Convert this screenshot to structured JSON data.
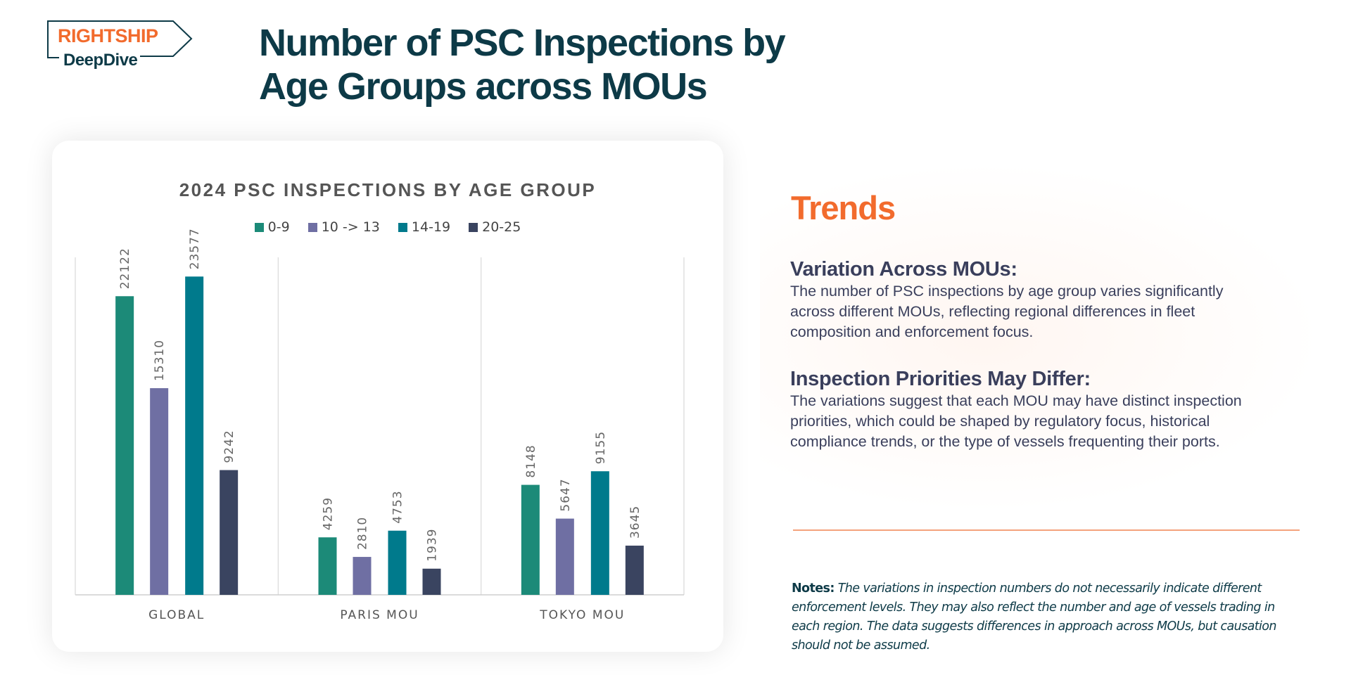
{
  "logo": {
    "brand": "RIGHTSHIP",
    "product": "DeepDive"
  },
  "header": {
    "title": "Number of PSC Inspections by Age Groups across MOUs"
  },
  "colors": {
    "accent": "#f26b2d",
    "title": "#0d3a47",
    "series": [
      "#1c8a78",
      "#6f6fa3",
      "#007a8c",
      "#3a4460"
    ]
  },
  "chart_data": {
    "type": "bar",
    "title": "2024 PSC INSPECTIONS BY AGE GROUP",
    "categories": [
      "GLOBAL",
      "PARIS MOU",
      "TOKYO MOU"
    ],
    "series": [
      {
        "name": "0-9",
        "values": [
          22122,
          4259,
          8148
        ]
      },
      {
        "name": "10 -> 13",
        "values": [
          15310,
          2810,
          5647
        ]
      },
      {
        "name": "14-19",
        "values": [
          23577,
          4753,
          9155
        ]
      },
      {
        "name": "20-25",
        "values": [
          9242,
          1939,
          3645
        ]
      }
    ],
    "xlabel": "",
    "ylabel": "",
    "ylim": [
      0,
      25000
    ],
    "legend": "top",
    "grid": false,
    "data_labels": true
  },
  "trends": {
    "heading": "Trends",
    "sections": [
      {
        "title": "Variation Across MOUs:",
        "body": "The number of PSC inspections by age group varies significantly across different MOUs, reflecting regional differences in fleet composition and enforcement focus."
      },
      {
        "title": "Inspection Priorities May Differ:",
        "body": "The variations suggest that each MOU may have distinct inspection priorities, which could be shaped by regulatory focus, historical compliance trends, or the type of vessels frequenting their ports."
      }
    ]
  },
  "notes": {
    "label": "Notes:",
    "text": "The variations in inspection numbers do not necessarily indicate different enforcement levels. They may also reflect the number and age of vessels trading in each region. The data suggests differences in approach across MOUs, but causation should not be assumed."
  }
}
